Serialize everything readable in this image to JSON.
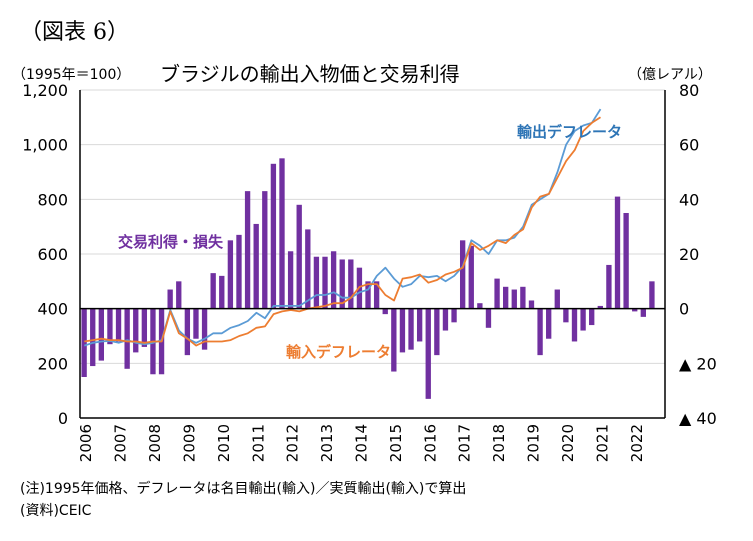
{
  "figure_label": "（図表 6）",
  "chart_data": {
    "type": "bar+line",
    "title": "ブラジルの輸出入物価と交易利得",
    "left_axis": {
      "unit": "（1995年＝100）",
      "range": [
        0,
        1200
      ],
      "ticks": [
        0,
        200,
        400,
        600,
        800,
        1000,
        1200
      ],
      "tick_labels": [
        "0",
        "200",
        "400",
        "600",
        "800",
        "1,000",
        "1,200"
      ]
    },
    "right_axis": {
      "unit": "（億レアル）",
      "range": [
        -40,
        80
      ],
      "ticks": [
        -40,
        -20,
        0,
        20,
        40,
        60,
        80
      ],
      "tick_labels": [
        "▲ 40",
        "▲ 20",
        "0",
        "20",
        "40",
        "60",
        "80"
      ]
    },
    "x_labels": [
      "2006",
      "2007",
      "2008",
      "2009",
      "2010",
      "2011",
      "2012",
      "2013",
      "2014",
      "2015",
      "2016",
      "2017",
      "2018",
      "2019",
      "2020",
      "2021",
      "2022"
    ],
    "x_start": 2006,
    "periods_per_year": 4,
    "series": [
      {
        "name": "交易利得・損失",
        "axis": "right",
        "kind": "bar",
        "color": "#7030a0",
        "values": [
          -25,
          -21,
          -19,
          -13,
          -12,
          -22,
          -16,
          -14,
          -24,
          -24,
          7,
          10,
          -17,
          -11,
          -15,
          13,
          12,
          25,
          27,
          43,
          31,
          43,
          53,
          55,
          21,
          38,
          29,
          19,
          19,
          21,
          18,
          18,
          15,
          10,
          10,
          -2,
          -23,
          -16,
          -15,
          -12,
          -33,
          -17,
          -8,
          -5,
          25,
          23,
          2,
          -7,
          11,
          8,
          7,
          8,
          3,
          -17,
          -11,
          7,
          -5,
          -12,
          -8,
          -6,
          1,
          16,
          41,
          35,
          -1,
          -3,
          10
        ]
      },
      {
        "name": "輸出デフレータ",
        "axis": "left",
        "kind": "line",
        "color": "#5b9bd5",
        "values": [
          265,
          275,
          280,
          282,
          275,
          285,
          275,
          270,
          275,
          285,
          395,
          320,
          290,
          275,
          290,
          310,
          310,
          330,
          340,
          355,
          385,
          365,
          410,
          410,
          410,
          410,
          430,
          450,
          450,
          460,
          440,
          440,
          460,
          470,
          520,
          550,
          510,
          480,
          490,
          520,
          515,
          520,
          500,
          520,
          555,
          650,
          630,
          600,
          650,
          650,
          660,
          700,
          780,
          800,
          820,
          900,
          1000,
          1050,
          1070,
          1080,
          1130
        ]
      },
      {
        "name": "輸入デフレータ",
        "axis": "left",
        "kind": "line",
        "color": "#ed7d31",
        "values": [
          280,
          285,
          290,
          285,
          285,
          280,
          280,
          275,
          280,
          280,
          390,
          310,
          290,
          265,
          280,
          280,
          280,
          285,
          300,
          310,
          330,
          335,
          380,
          390,
          395,
          390,
          400,
          405,
          410,
          420,
          420,
          440,
          480,
          490,
          490,
          450,
          430,
          510,
          515,
          525,
          495,
          505,
          525,
          535,
          550,
          640,
          615,
          630,
          650,
          640,
          670,
          690,
          770,
          810,
          820,
          880,
          940,
          980,
          1050,
          1080,
          1100
        ]
      }
    ],
    "annotations": [
      "交易利得・損失",
      "輸出デフレータ",
      "輸入デフレータ"
    ],
    "gridlines": true
  },
  "note": "(注)1995年価格、デフレータは名目輸出(輸入)／実質輸出(輸入)で算出",
  "source": "(資料)CEIC"
}
